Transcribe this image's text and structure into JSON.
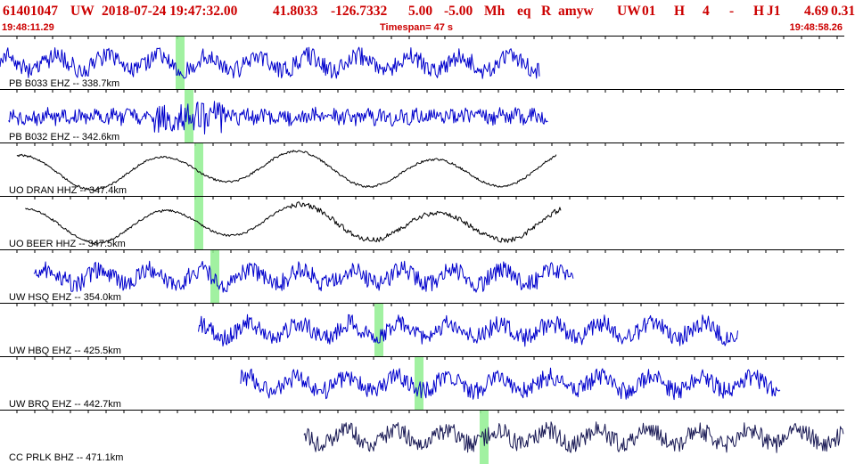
{
  "header": {
    "event_id": "61401047",
    "network": "UW",
    "datetime": "2018-07-24 19:47:32.00",
    "latitude": "41.8033",
    "longitude": "-126.7332",
    "depth": "5.00",
    "magnitude": "-5.00",
    "magnitude_type": "Mh",
    "event_type": "eq",
    "review_status": "R",
    "author": "amyw",
    "source": "UW",
    "version": "01",
    "flag": "H",
    "count": "4",
    "dash": "-",
    "quality": "H",
    "subnet": "J1",
    "value1": "4.69",
    "value2": "0.31"
  },
  "timebar": {
    "start_time": "19:48:11.29",
    "timespan": "Timespan=  47 s",
    "end_time": "19:48:58.26"
  },
  "colors": {
    "header_text": "#cc0000",
    "trace_blue": "#0000cc",
    "trace_black": "#000000",
    "trace_navy": "#1a1a55",
    "pick": "#90ee90"
  },
  "channels": [
    {
      "label": "PB B033 EHZ -- 338.7km",
      "color": "blue",
      "trace_start_frac": 0.0,
      "trace_end_frac": 0.64,
      "pick_frac": 0.213,
      "style": "noisy"
    },
    {
      "label": "PB B032 EHZ -- 342.6km",
      "color": "blue",
      "trace_start_frac": 0.01,
      "trace_end_frac": 0.65,
      "pick_frac": 0.224,
      "style": "burst"
    },
    {
      "label": "UO DRAN HHZ -- 347.4km",
      "color": "black",
      "trace_start_frac": 0.02,
      "trace_end_frac": 0.66,
      "pick_frac": 0.236,
      "style": "wave"
    },
    {
      "label": "UO BEER HHZ -- 347.5km",
      "color": "black",
      "trace_start_frac": 0.03,
      "trace_end_frac": 0.665,
      "pick_frac": 0.236,
      "style": "wave-noisy"
    },
    {
      "label": "UW HSQ EHZ -- 354.0km",
      "color": "blue",
      "trace_start_frac": 0.04,
      "trace_end_frac": 0.68,
      "pick_frac": 0.254,
      "style": "noisy"
    },
    {
      "label": "UW HBQ EHZ -- 425.5km",
      "color": "blue",
      "trace_start_frac": 0.235,
      "trace_end_frac": 0.875,
      "pick_frac": 0.449,
      "style": "noisy"
    },
    {
      "label": "UW BRQ EHZ -- 442.7km",
      "color": "blue",
      "trace_start_frac": 0.285,
      "trace_end_frac": 0.925,
      "pick_frac": 0.496,
      "style": "noisy"
    },
    {
      "label": "CC PRLK BHZ -- 471.1km",
      "color": "navy",
      "trace_start_frac": 0.36,
      "trace_end_frac": 1.0,
      "pick_frac": 0.573,
      "style": "noisy"
    }
  ]
}
